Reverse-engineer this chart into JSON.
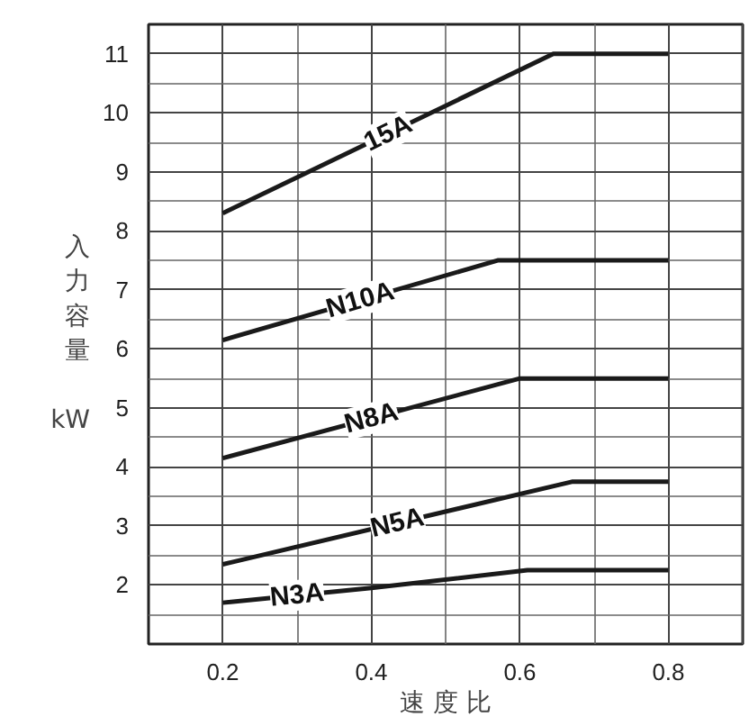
{
  "chart_data": {
    "type": "line",
    "xlabel": "速 度 比",
    "ylabel": "入力容量 kW",
    "xlim": [
      0.1,
      0.9
    ],
    "ylim": [
      1,
      11.5
    ],
    "xticks": [
      0.2,
      0.4,
      0.6,
      0.8
    ],
    "yticks": [
      2,
      3,
      4,
      5,
      6,
      7,
      8,
      9,
      10,
      11
    ],
    "grid": true,
    "series": [
      {
        "name": "15A",
        "color": "#1a1a1a",
        "x": [
          0.2,
          0.645,
          0.8
        ],
        "values": [
          8.3,
          11,
          11
        ]
      },
      {
        "name": "N10A",
        "color": "#1a1a1a",
        "x": [
          0.2,
          0.57,
          0.8
        ],
        "values": [
          6.15,
          7.5,
          7.5
        ]
      },
      {
        "name": "N8A",
        "color": "#1a1a1a",
        "x": [
          0.2,
          0.6,
          0.8
        ],
        "values": [
          4.15,
          5.5,
          5.5
        ]
      },
      {
        "name": "N5A",
        "color": "#1a1a1a",
        "x": [
          0.2,
          0.67,
          0.8
        ],
        "values": [
          2.35,
          3.75,
          3.75
        ]
      },
      {
        "name": "N3A",
        "color": "#1a1a1a",
        "x": [
          0.2,
          0.4,
          0.61,
          0.8
        ],
        "values": [
          1.7,
          1.95,
          2.25,
          2.25
        ]
      }
    ]
  }
}
